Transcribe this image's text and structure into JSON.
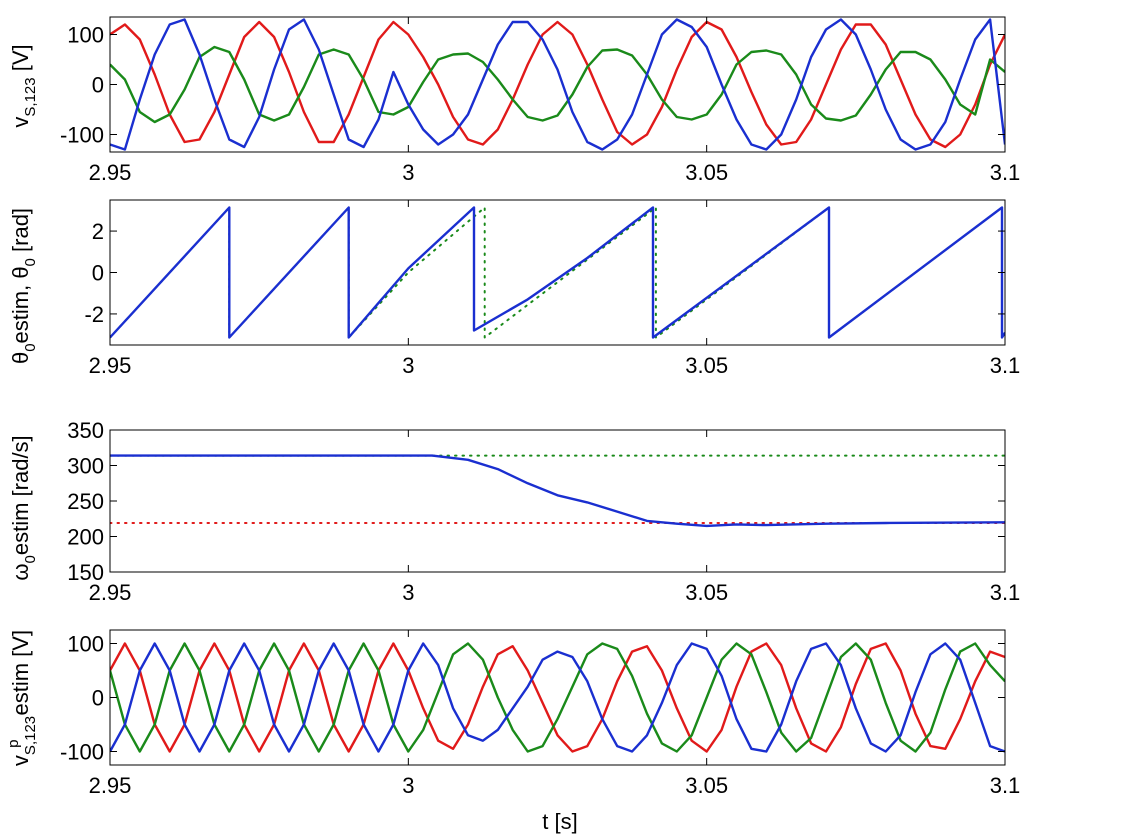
{
  "figure": {
    "xlabel": "t [s]",
    "colors": {
      "red": "#e11a1a",
      "green": "#1a8a1a",
      "blue": "#1a2fd0"
    }
  },
  "chart_data": [
    {
      "type": "line",
      "title": "",
      "ylabel": {
        "base": "v",
        "sub": "S,123",
        "tail": " [V]"
      },
      "xlim": [
        2.95,
        3.1
      ],
      "ylim": [
        -135,
        135
      ],
      "xticks": [
        2.95,
        3,
        3.05,
        3.1
      ],
      "xtick_labels": [
        "2.95",
        "3",
        "3.05",
        "3.1"
      ],
      "yticks": [
        -100,
        0,
        100
      ],
      "ytick_labels": [
        "-100",
        "0",
        "100"
      ],
      "grid": false,
      "series": [
        {
          "color": "#e11a1a",
          "style": "solid",
          "x": [
            2.95,
            2.9525,
            2.955,
            2.9575,
            2.96,
            2.9625,
            2.965,
            2.9675,
            2.97,
            2.9725,
            2.975,
            2.9775,
            2.98,
            2.9825,
            2.985,
            2.9875,
            2.99,
            2.9925,
            2.995,
            2.9975,
            3.0,
            3.0025,
            3.005,
            3.0075,
            3.01,
            3.0125,
            3.015,
            3.0175,
            3.02,
            3.0225,
            3.025,
            3.0275,
            3.03,
            3.0325,
            3.035,
            3.0375,
            3.04,
            3.0425,
            3.045,
            3.0475,
            3.05,
            3.0525,
            3.055,
            3.0575,
            3.06,
            3.0625,
            3.065,
            3.0675,
            3.07,
            3.0725,
            3.075,
            3.0775,
            3.08,
            3.0825,
            3.085,
            3.0875,
            3.09,
            3.0925,
            3.095,
            3.0975,
            3.1
          ],
          "y": [
            100,
            120,
            90,
            20,
            -60,
            -115,
            -110,
            -55,
            20,
            95,
            125,
            95,
            25,
            -55,
            -115,
            -115,
            -60,
            15,
            90,
            125,
            100,
            55,
            0,
            -65,
            -110,
            -120,
            -90,
            -30,
            40,
            100,
            125,
            100,
            40,
            -30,
            -95,
            -120,
            -100,
            -45,
            30,
            95,
            125,
            110,
            55,
            -15,
            -80,
            -120,
            -115,
            -70,
            0,
            70,
            120,
            120,
            80,
            10,
            -60,
            -110,
            -125,
            -100,
            -40,
            40,
            100
          ]
        },
        {
          "color": "#1a8a1a",
          "style": "solid",
          "x": [
            2.95,
            2.9525,
            2.955,
            2.9575,
            2.96,
            2.9625,
            2.965,
            2.9675,
            2.97,
            2.9725,
            2.975,
            2.9775,
            2.98,
            2.9825,
            2.985,
            2.9875,
            2.99,
            2.9925,
            2.995,
            2.9975,
            3.0,
            3.0025,
            3.005,
            3.0075,
            3.01,
            3.0125,
            3.015,
            3.0175,
            3.02,
            3.0225,
            3.025,
            3.0275,
            3.03,
            3.0325,
            3.035,
            3.0375,
            3.04,
            3.0425,
            3.045,
            3.0475,
            3.05,
            3.0525,
            3.055,
            3.0575,
            3.06,
            3.0625,
            3.065,
            3.0675,
            3.07,
            3.0725,
            3.075,
            3.0775,
            3.08,
            3.0825,
            3.085,
            3.0875,
            3.09,
            3.0925,
            3.095,
            3.0975,
            3.1
          ],
          "y": [
            40,
            10,
            -55,
            -75,
            -60,
            -10,
            55,
            75,
            65,
            10,
            -60,
            -72,
            -60,
            -5,
            60,
            70,
            60,
            10,
            -55,
            -60,
            -45,
            5,
            50,
            60,
            62,
            45,
            10,
            -30,
            -65,
            -72,
            -62,
            -20,
            35,
            68,
            70,
            58,
            20,
            -30,
            -65,
            -70,
            -60,
            -20,
            40,
            65,
            68,
            60,
            20,
            -40,
            -68,
            -72,
            -62,
            -20,
            30,
            65,
            65,
            50,
            10,
            -40,
            -60,
            50,
            25
          ]
        },
        {
          "color": "#1a2fd0",
          "style": "solid",
          "x": [
            2.95,
            2.9525,
            2.955,
            2.9575,
            2.96,
            2.9625,
            2.965,
            2.9675,
            2.97,
            2.9725,
            2.975,
            2.9775,
            2.98,
            2.9825,
            2.985,
            2.9875,
            2.99,
            2.9925,
            2.995,
            2.9975,
            3.0,
            3.0025,
            3.005,
            3.0075,
            3.01,
            3.0125,
            3.015,
            3.0175,
            3.02,
            3.0225,
            3.025,
            3.0275,
            3.03,
            3.0325,
            3.035,
            3.0375,
            3.04,
            3.0425,
            3.045,
            3.0475,
            3.05,
            3.0525,
            3.055,
            3.0575,
            3.06,
            3.0625,
            3.065,
            3.0675,
            3.07,
            3.0725,
            3.075,
            3.0775,
            3.08,
            3.0825,
            3.085,
            3.0875,
            3.09,
            3.0925,
            3.095,
            3.0975,
            3.1
          ],
          "y": [
            -120,
            -130,
            -30,
            60,
            120,
            130,
            60,
            -30,
            -110,
            -125,
            -65,
            30,
            110,
            130,
            70,
            -20,
            -110,
            -125,
            -70,
            25,
            -40,
            -90,
            -120,
            -100,
            -60,
            10,
            80,
            125,
            125,
            90,
            30,
            -55,
            -115,
            -130,
            -110,
            -60,
            20,
            100,
            130,
            115,
            75,
            0,
            -70,
            -120,
            -130,
            -100,
            -30,
            55,
            110,
            130,
            100,
            30,
            -50,
            -110,
            -130,
            -120,
            -75,
            10,
            90,
            130,
            -120
          ]
        }
      ]
    },
    {
      "type": "line",
      "title": "",
      "ylabel": {
        "base": "θ",
        "sub": "0",
        "tail": "estim, θ",
        "sub2": "0",
        "tail2": " [rad]"
      },
      "xlim": [
        2.95,
        3.1
      ],
      "ylim": [
        -3.5,
        3.5
      ],
      "xticks": [
        2.95,
        3,
        3.05,
        3.1
      ],
      "xtick_labels": [
        "2.95",
        "3",
        "3.05",
        "3.1"
      ],
      "yticks": [
        -2,
        0,
        2
      ],
      "ytick_labels": [
        "-2",
        "0",
        "2"
      ],
      "grid": false,
      "series": [
        {
          "color": "#1a8a1a",
          "style": "dotted",
          "x": [
            2.95,
            2.97,
            2.97,
            2.99,
            2.99,
            3.0,
            3.0128,
            3.0128,
            3.0415,
            3.0415,
            3.0705,
            3.0705,
            3.0995,
            3.0995,
            3.1
          ],
          "y": [
            -3.14,
            3.14,
            -3.14,
            3.14,
            -3.14,
            0.0,
            3.14,
            -3.14,
            3.14,
            -3.14,
            3.14,
            -3.14,
            3.14,
            -3.14,
            -2.9
          ]
        },
        {
          "color": "#1a2fd0",
          "style": "solid",
          "x": [
            2.95,
            2.97,
            2.97,
            2.99,
            2.99,
            3.0,
            3.011,
            3.011,
            3.02,
            3.03,
            3.041,
            3.041,
            3.0705,
            3.0705,
            3.0995,
            3.0995,
            3.1
          ],
          "y": [
            -3.14,
            3.14,
            -3.14,
            3.14,
            -3.14,
            0.2,
            3.14,
            -2.8,
            -1.3,
            0.7,
            3.14,
            -3.14,
            3.14,
            -3.14,
            3.14,
            -3.14,
            -2.9
          ]
        }
      ]
    },
    {
      "type": "line",
      "title": "",
      "ylabel": {
        "base": "ω",
        "sub": "0",
        "tail": "estim [rad/s]"
      },
      "xlim": [
        2.95,
        3.1
      ],
      "ylim": [
        150,
        350
      ],
      "xticks": [
        2.95,
        3,
        3.05,
        3.1
      ],
      "xtick_labels": [
        "2.95",
        "3",
        "3.05",
        "3.1"
      ],
      "yticks": [
        150,
        200,
        250,
        300,
        350
      ],
      "ytick_labels": [
        "150",
        "200",
        "250",
        "300",
        "350"
      ],
      "grid": false,
      "series": [
        {
          "color": "#1a8a1a",
          "style": "dotted",
          "x": [
            2.95,
            3.1
          ],
          "y": [
            314,
            314
          ]
        },
        {
          "color": "#e11a1a",
          "style": "dotted",
          "x": [
            2.95,
            3.1
          ],
          "y": [
            219,
            219
          ]
        },
        {
          "color": "#1a2fd0",
          "style": "solid",
          "x": [
            2.95,
            3.0,
            3.004,
            3.01,
            3.015,
            3.02,
            3.025,
            3.03,
            3.035,
            3.04,
            3.045,
            3.05,
            3.055,
            3.06,
            3.07,
            3.08,
            3.1
          ],
          "y": [
            314,
            314,
            314,
            308,
            295,
            275,
            258,
            248,
            235,
            222,
            218,
            215,
            217,
            216,
            218,
            219,
            220
          ]
        }
      ]
    },
    {
      "type": "line",
      "title": "",
      "ylabel": {
        "base": "v",
        "sub": "S,123",
        "sup": "p",
        "tail": "estim [V]"
      },
      "xlim": [
        2.95,
        3.1
      ],
      "ylim": [
        -125,
        125
      ],
      "xticks": [
        2.95,
        3,
        3.05,
        3.1
      ],
      "xtick_labels": [
        "2.95",
        "3",
        "3.05",
        "3.1"
      ],
      "yticks": [
        -100,
        0,
        100
      ],
      "ytick_labels": [
        "-100",
        "0",
        "100"
      ],
      "grid": false,
      "series": [
        {
          "color": "#e11a1a",
          "style": "solid",
          "x": [
            2.95,
            2.9525,
            2.955,
            2.9575,
            2.96,
            2.9625,
            2.965,
            2.9675,
            2.97,
            2.9725,
            2.975,
            2.9775,
            2.98,
            2.9825,
            2.985,
            2.9875,
            2.99,
            2.9925,
            2.995,
            2.9975,
            3.0,
            3.0025,
            3.005,
            3.0075,
            3.01,
            3.0125,
            3.015,
            3.0175,
            3.02,
            3.0225,
            3.025,
            3.0275,
            3.03,
            3.0325,
            3.035,
            3.0375,
            3.04,
            3.0425,
            3.045,
            3.0475,
            3.05,
            3.0525,
            3.055,
            3.0575,
            3.06,
            3.0625,
            3.065,
            3.0675,
            3.07,
            3.0725,
            3.075,
            3.0775,
            3.08,
            3.0825,
            3.085,
            3.0875,
            3.09,
            3.0925,
            3.095,
            3.0975,
            3.1
          ],
          "y": [
            50,
            100,
            50,
            -50,
            -100,
            -50,
            50,
            100,
            50,
            -50,
            -100,
            -50,
            50,
            100,
            50,
            -50,
            -100,
            -50,
            50,
            100,
            50,
            -20,
            -80,
            -95,
            -50,
            20,
            80,
            95,
            50,
            -10,
            -70,
            -100,
            -90,
            -40,
            30,
            85,
            95,
            50,
            -20,
            -80,
            -100,
            -60,
            20,
            85,
            100,
            60,
            -20,
            -85,
            -100,
            -55,
            25,
            90,
            100,
            50,
            -30,
            -90,
            -95,
            -40,
            30,
            85,
            75
          ]
        },
        {
          "color": "#1a8a1a",
          "style": "solid",
          "x": [
            2.95,
            2.9525,
            2.955,
            2.9575,
            2.96,
            2.9625,
            2.965,
            2.9675,
            2.97,
            2.9725,
            2.975,
            2.9775,
            2.98,
            2.9825,
            2.985,
            2.9875,
            2.99,
            2.9925,
            2.995,
            2.9975,
            3.0,
            3.0025,
            3.005,
            3.0075,
            3.01,
            3.0125,
            3.015,
            3.0175,
            3.02,
            3.0225,
            3.025,
            3.0275,
            3.03,
            3.0325,
            3.035,
            3.0375,
            3.04,
            3.0425,
            3.045,
            3.0475,
            3.05,
            3.0525,
            3.055,
            3.0575,
            3.06,
            3.0625,
            3.065,
            3.0675,
            3.07,
            3.0725,
            3.075,
            3.0775,
            3.08,
            3.0825,
            3.085,
            3.0875,
            3.09,
            3.0925,
            3.095,
            3.0975,
            3.1
          ],
          "y": [
            50,
            -50,
            -100,
            -50,
            50,
            100,
            50,
            -50,
            -100,
            -50,
            50,
            100,
            50,
            -50,
            -100,
            -50,
            50,
            100,
            50,
            -50,
            -100,
            -60,
            10,
            80,
            100,
            70,
            0,
            -60,
            -100,
            -90,
            -40,
            20,
            80,
            100,
            90,
            40,
            -30,
            -85,
            -100,
            -70,
            0,
            70,
            100,
            80,
            10,
            -65,
            -100,
            -75,
            0,
            75,
            100,
            70,
            -10,
            -80,
            -100,
            -65,
            15,
            85,
            100,
            60,
            30
          ]
        },
        {
          "color": "#1a2fd0",
          "style": "solid",
          "x": [
            2.95,
            2.9525,
            2.955,
            2.9575,
            2.96,
            2.9625,
            2.965,
            2.9675,
            2.97,
            2.9725,
            2.975,
            2.9775,
            2.98,
            2.9825,
            2.985,
            2.9875,
            2.99,
            2.9925,
            2.995,
            2.9975,
            3.0,
            3.0025,
            3.005,
            3.0075,
            3.01,
            3.0125,
            3.015,
            3.0175,
            3.02,
            3.0225,
            3.025,
            3.0275,
            3.03,
            3.0325,
            3.035,
            3.0375,
            3.04,
            3.0425,
            3.045,
            3.0475,
            3.05,
            3.0525,
            3.055,
            3.0575,
            3.06,
            3.0625,
            3.065,
            3.0675,
            3.07,
            3.0725,
            3.075,
            3.0775,
            3.08,
            3.0825,
            3.085,
            3.0875,
            3.09,
            3.0925,
            3.095,
            3.0975,
            3.1
          ],
          "y": [
            -100,
            -50,
            50,
            100,
            50,
            -50,
            -100,
            -50,
            50,
            100,
            50,
            -50,
            -100,
            -50,
            50,
            100,
            50,
            -50,
            -100,
            -50,
            50,
            100,
            60,
            -20,
            -70,
            -80,
            -60,
            -20,
            20,
            70,
            85,
            75,
            30,
            -40,
            -90,
            -100,
            -70,
            -10,
            60,
            100,
            90,
            40,
            -40,
            -95,
            -100,
            -50,
            30,
            90,
            100,
            60,
            -20,
            -85,
            -100,
            -70,
            10,
            80,
            100,
            70,
            -10,
            -90,
            -100
          ]
        }
      ]
    }
  ]
}
